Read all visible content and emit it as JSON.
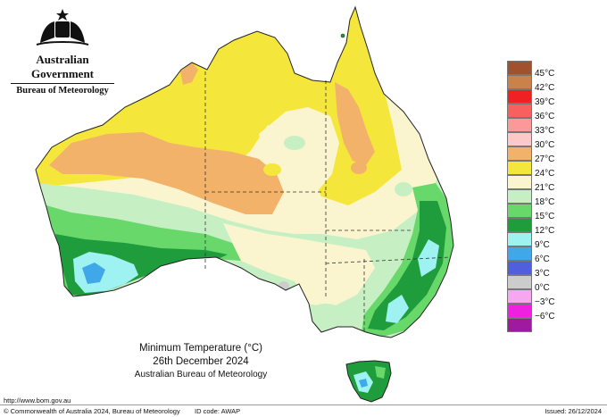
{
  "header": {
    "government": "Australian Government",
    "bureau": "Bureau of Meteorology",
    "crest_icon": "commonwealth-coat-of-arms"
  },
  "map": {
    "caption_title": "Minimum Temperature (°C)",
    "caption_date": "26th December 2024",
    "caption_org": "Australian Bureau of Meteorology"
  },
  "legend": {
    "items": [
      {
        "label": "45°C",
        "color": "#a0522d"
      },
      {
        "label": "42°C",
        "color": "#c8824a"
      },
      {
        "label": "39°C",
        "color": "#ee2222"
      },
      {
        "label": "36°C",
        "color": "#f86060"
      },
      {
        "label": "33°C",
        "color": "#fb9898"
      },
      {
        "label": "30°C",
        "color": "#fdc8c8"
      },
      {
        "label": "27°C",
        "color": "#f2b26a"
      },
      {
        "label": "24°C",
        "color": "#f5e63c"
      },
      {
        "label": "21°C",
        "color": "#fbf5cf"
      },
      {
        "label": "18°C",
        "color": "#c7efc4"
      },
      {
        "label": "15°C",
        "color": "#68d86a"
      },
      {
        "label": "12°C",
        "color": "#1f9d3c"
      },
      {
        "label": "9°C",
        "color": "#9ff2f2"
      },
      {
        "label": "6°C",
        "color": "#3fa8e8"
      },
      {
        "label": "3°C",
        "color": "#5060dc"
      },
      {
        "label": "0°C",
        "color": "#cccccc"
      },
      {
        "label": "−3°C",
        "color": "#f7a6f0"
      },
      {
        "label": "−6°C",
        "color": "#f020e0"
      },
      {
        "label": "",
        "color": "#a01aa0"
      }
    ]
  },
  "footer": {
    "url": "http://www.bom.gov.au",
    "copyright": "© Commonwealth of Australia 2024, Bureau of Meteorology",
    "id_code": "ID code: AWAP",
    "issued": "Issued: 26/12/2024"
  }
}
